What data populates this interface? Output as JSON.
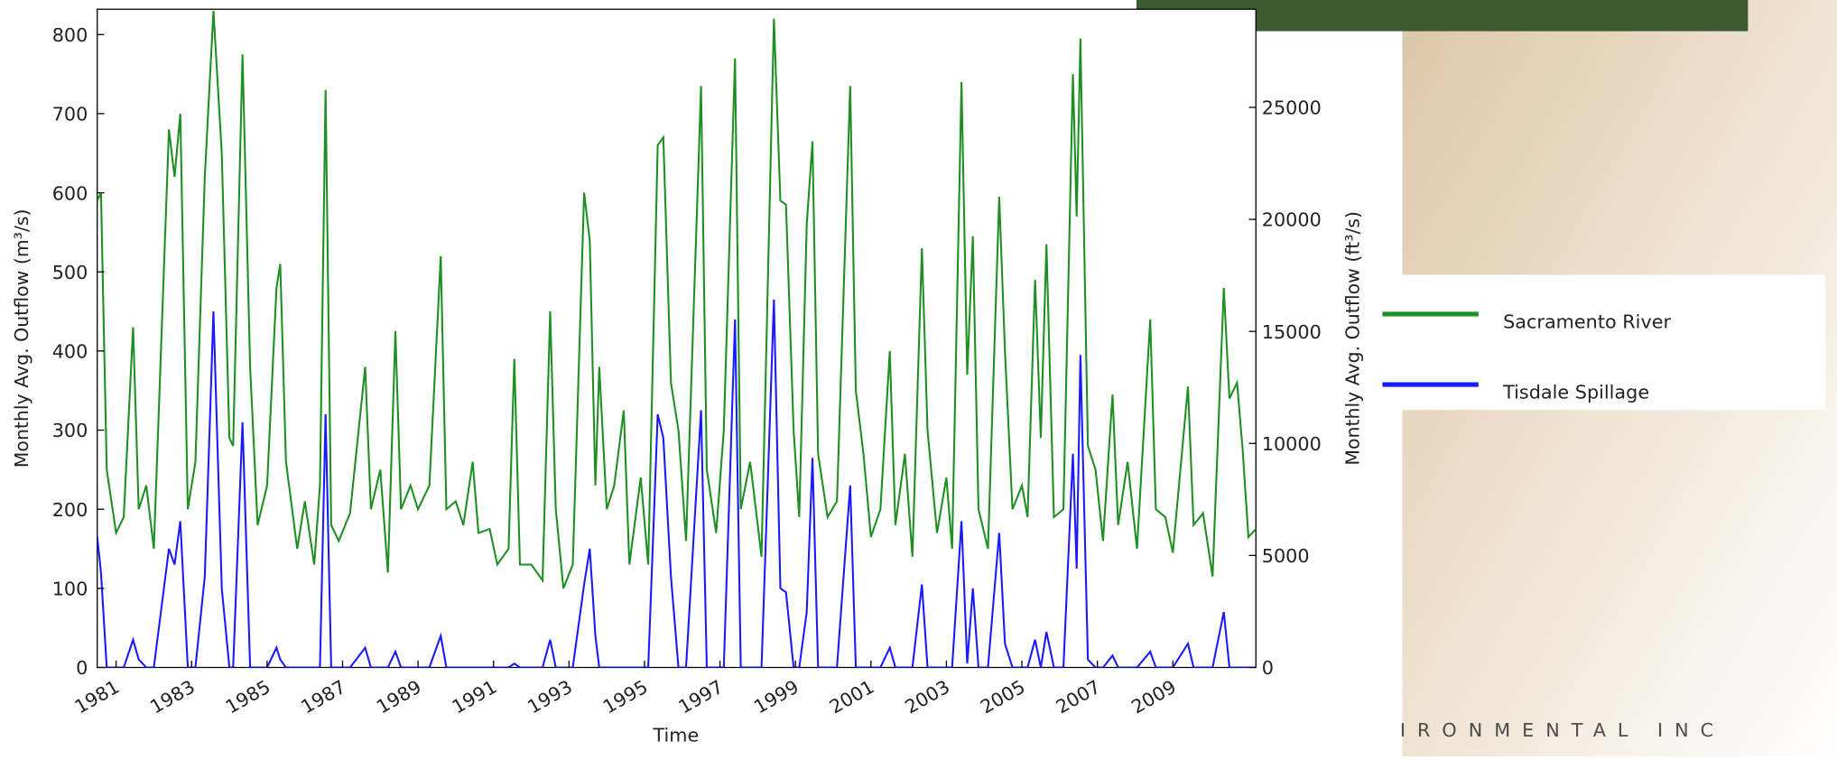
{
  "chart_data": {
    "type": "line",
    "x_label": "Time",
    "y_label": "Monthly Avg. Outflow (m³/s)",
    "y2_label": "Monthly Avg. Outflow (ft³/s)",
    "watermark": "IRONMENTAL INC",
    "legend": "right",
    "xlim": [
      1980.5,
      2011.2
    ],
    "xticks": [
      1981,
      1983,
      1985,
      1987,
      1989,
      1991,
      1993,
      1995,
      1997,
      1999,
      2001,
      2003,
      2005,
      2007,
      2009
    ],
    "ylim": [
      0,
      832
    ],
    "yticks": [
      0,
      100,
      200,
      300,
      400,
      500,
      600,
      700,
      800
    ],
    "y2lim": [
      0,
      29380
    ],
    "y2ticks": [
      0,
      5000,
      10000,
      15000,
      20000,
      25000
    ],
    "x": [
      1980.5,
      1980.6,
      1980.75,
      1981.0,
      1981.2,
      1981.45,
      1981.6,
      1981.8,
      1982.0,
      1982.4,
      1982.55,
      1982.7,
      1982.9,
      1983.1,
      1983.35,
      1983.58,
      1983.8,
      1984.0,
      1984.1,
      1984.35,
      1984.55,
      1984.75,
      1985.0,
      1985.25,
      1985.35,
      1985.5,
      1985.8,
      1986.0,
      1986.25,
      1986.4,
      1986.55,
      1986.7,
      1986.9,
      1987.2,
      1987.6,
      1987.75,
      1988.0,
      1988.2,
      1988.4,
      1988.55,
      1988.8,
      1989.0,
      1989.3,
      1989.6,
      1989.75,
      1990.0,
      1990.2,
      1990.45,
      1990.6,
      1990.9,
      1991.1,
      1991.4,
      1991.55,
      1991.7,
      1992.0,
      1992.3,
      1992.5,
      1992.65,
      1992.85,
      1993.1,
      1993.4,
      1993.55,
      1993.7,
      1993.8,
      1994.0,
      1994.2,
      1994.45,
      1994.6,
      1994.9,
      1995.1,
      1995.35,
      1995.5,
      1995.7,
      1995.9,
      1996.1,
      1996.5,
      1996.65,
      1996.9,
      1997.1,
      1997.4,
      1997.55,
      1997.8,
      1998.1,
      1998.43,
      1998.6,
      1998.75,
      1998.95,
      1999.1,
      1999.3,
      1999.45,
      1999.6,
      1999.85,
      2000.1,
      2000.45,
      2000.6,
      2000.8,
      2001.0,
      2001.25,
      2001.5,
      2001.65,
      2001.9,
      2002.1,
      2002.35,
      2002.5,
      2002.75,
      2003.0,
      2003.15,
      2003.4,
      2003.55,
      2003.7,
      2003.85,
      2004.1,
      2004.4,
      2004.55,
      2004.75,
      2005.0,
      2005.15,
      2005.35,
      2005.5,
      2005.65,
      2005.85,
      2006.1,
      2006.35,
      2006.45,
      2006.55,
      2006.75,
      2006.95,
      2007.15,
      2007.4,
      2007.55,
      2007.8,
      2008.05,
      2008.4,
      2008.55,
      2008.8,
      2009.0,
      2009.4,
      2009.55,
      2009.8,
      2010.05,
      2010.35,
      2010.5,
      2010.7,
      2010.85,
      2011.0,
      2011.2
    ],
    "series": [
      {
        "name": "Sacramento River",
        "color": "#1f8f24",
        "values": [
          590,
          600,
          250,
          170,
          190,
          430,
          200,
          230,
          150,
          680,
          620,
          700,
          200,
          260,
          620,
          830,
          650,
          290,
          280,
          775,
          380,
          180,
          230,
          480,
          510,
          260,
          150,
          210,
          130,
          230,
          730,
          180,
          160,
          195,
          380,
          200,
          250,
          120,
          425,
          200,
          230,
          200,
          230,
          520,
          200,
          210,
          180,
          260,
          170,
          175,
          130,
          150,
          390,
          130,
          130,
          110,
          450,
          200,
          100,
          130,
          600,
          540,
          230,
          380,
          200,
          230,
          325,
          130,
          240,
          130,
          660,
          670,
          360,
          300,
          160,
          735,
          250,
          170,
          300,
          770,
          200,
          260,
          140,
          820,
          590,
          585,
          300,
          190,
          560,
          665,
          270,
          190,
          210,
          735,
          350,
          270,
          165,
          200,
          400,
          180,
          270,
          140,
          530,
          300,
          170,
          240,
          150,
          740,
          370,
          545,
          200,
          150,
          595,
          400,
          200,
          230,
          190,
          490,
          290,
          535,
          190,
          200,
          750,
          570,
          795,
          280,
          250,
          160,
          345,
          180,
          260,
          150,
          440,
          200,
          190,
          145,
          355,
          180,
          195,
          115,
          480,
          340,
          360,
          275,
          165,
          175
        ]
      },
      {
        "name": "Tisdale Spillage",
        "color": "#1a1aff",
        "values": [
          165,
          120,
          0,
          0,
          0,
          35,
          10,
          0,
          0,
          150,
          130,
          185,
          0,
          0,
          115,
          450,
          100,
          0,
          0,
          310,
          0,
          0,
          0,
          25,
          10,
          0,
          0,
          0,
          0,
          0,
          320,
          0,
          0,
          0,
          25,
          0,
          0,
          0,
          20,
          0,
          0,
          0,
          0,
          40,
          0,
          0,
          0,
          0,
          0,
          0,
          0,
          0,
          5,
          0,
          0,
          0,
          35,
          0,
          0,
          0,
          105,
          150,
          40,
          0,
          0,
          0,
          0,
          0,
          0,
          0,
          320,
          290,
          115,
          0,
          0,
          325,
          0,
          0,
          0,
          440,
          0,
          0,
          0,
          465,
          100,
          95,
          0,
          0,
          70,
          265,
          0,
          0,
          0,
          230,
          0,
          0,
          0,
          0,
          25,
          0,
          0,
          0,
          105,
          0,
          0,
          0,
          0,
          185,
          5,
          100,
          0,
          0,
          170,
          30,
          0,
          0,
          0,
          35,
          0,
          45,
          0,
          0,
          270,
          125,
          395,
          10,
          0,
          0,
          15,
          0,
          0,
          0,
          20,
          0,
          0,
          0,
          30,
          0,
          0,
          0,
          70,
          0,
          0,
          0,
          0,
          0
        ]
      }
    ]
  }
}
